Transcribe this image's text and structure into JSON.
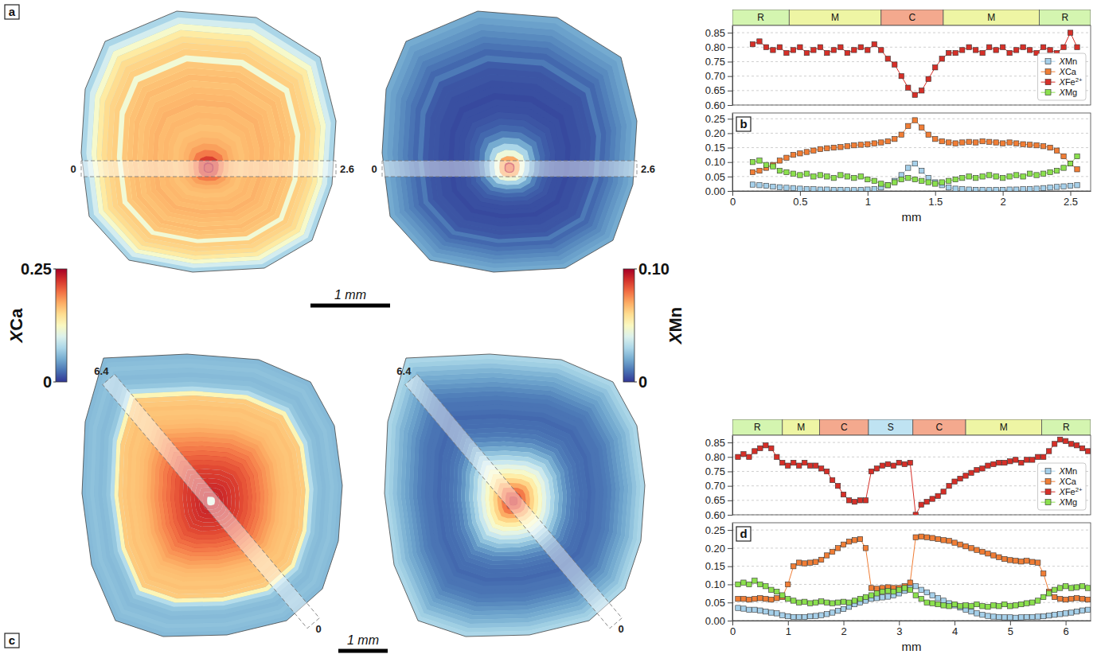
{
  "chart_data": [
    {
      "type": "colorbar",
      "label": "XCa",
      "range": [
        0,
        0.25
      ],
      "ticks": [
        0.25,
        0
      ]
    },
    {
      "type": "colorbar",
      "label": "XMn",
      "range": [
        0,
        0.1
      ],
      "ticks": [
        {
          "value": 0.1,
          "label": "0.10"
        },
        0
      ]
    },
    {
      "type": "line",
      "panel": "b",
      "maps": {
        "panel": "a",
        "series": [
          "XCa",
          "XMn"
        ],
        "traverse": [
          0,
          2.6
        ],
        "scale_bar": "1 mm"
      },
      "x": [
        0.15,
        0.2,
        0.25,
        0.3,
        0.35,
        0.4,
        0.45,
        0.5,
        0.55,
        0.6,
        0.65,
        0.7,
        0.75,
        0.8,
        0.85,
        0.9,
        0.95,
        1,
        1.05,
        1.1,
        1.15,
        1.2,
        1.25,
        1.3,
        1.35,
        1.4,
        1.45,
        1.5,
        1.55,
        1.6,
        1.65,
        1.7,
        1.75,
        1.8,
        1.85,
        1.9,
        1.95,
        2,
        2.05,
        2.1,
        2.15,
        2.2,
        2.25,
        2.3,
        2.35,
        2.4,
        2.45,
        2.5,
        2.55
      ],
      "xlim": [
        0,
        2.65
      ],
      "xticks": [
        0,
        0.5,
        1,
        1.5,
        2,
        2.5
      ],
      "x_label": "mm",
      "ylim": [
        0,
        0.27
      ],
      "yticks": [
        {
          "value": 0,
          "label": "0.00"
        },
        0.05,
        {
          "value": 0.1,
          "label": "0.10"
        },
        0.15,
        {
          "value": 0.2,
          "label": "0.20"
        },
        0.25
      ],
      "y2lim": [
        0.6,
        0.875
      ],
      "y2ticks": [
        {
          "value": 0.6,
          "label": "0.60"
        },
        0.65,
        {
          "value": 0.7,
          "label": "0.70"
        },
        0.75,
        {
          "value": 0.8,
          "label": "0.80"
        },
        0.85
      ],
      "grid": true,
      "legend": "lower right",
      "marker": "square",
      "zones": [
        {
          "label": "R",
          "start": 0,
          "end": 0.42,
          "color": "#d4f5b0"
        },
        {
          "label": "M",
          "start": 0.42,
          "end": 1.1,
          "color": "#eef5a4"
        },
        {
          "label": "C",
          "start": 1.1,
          "end": 1.56,
          "color": "#f4a98e"
        },
        {
          "label": "M",
          "start": 1.56,
          "end": 2.27,
          "color": "#eef5a4"
        },
        {
          "label": "R",
          "start": 2.27,
          "end": 2.65,
          "color": "#d4f5b0"
        }
      ],
      "series": [
        {
          "name": "XMn",
          "color": "#a6d0ea",
          "values": [
            0.022,
            0.02,
            0.018,
            0.015,
            0.013,
            0.011,
            0.01,
            0.008,
            0.007,
            0.006,
            0.005,
            0.005,
            0.004,
            0.004,
            0.003,
            0.003,
            0.004,
            0.005,
            0.007,
            0.012,
            0.02,
            0.035,
            0.055,
            0.08,
            0.095,
            0.07,
            0.045,
            0.03,
            0.02,
            0.012,
            0.008,
            0.006,
            0.005,
            0.004,
            0.004,
            0.003,
            0.004,
            0.004,
            0.005,
            0.005,
            0.006,
            0.007,
            0.008,
            0.01,
            0.012,
            0.014,
            0.016,
            0.018,
            0.02
          ]
        },
        {
          "name": "XCa",
          "color": "#f07d35",
          "values": [
            0.065,
            0.07,
            0.08,
            0.09,
            0.105,
            0.115,
            0.125,
            0.13,
            0.135,
            0.14,
            0.145,
            0.148,
            0.15,
            0.152,
            0.155,
            0.158,
            0.16,
            0.162,
            0.165,
            0.168,
            0.172,
            0.18,
            0.195,
            0.225,
            0.245,
            0.22,
            0.195,
            0.18,
            0.172,
            0.168,
            0.165,
            0.168,
            0.17,
            0.168,
            0.172,
            0.17,
            0.168,
            0.165,
            0.168,
            0.165,
            0.162,
            0.16,
            0.158,
            0.155,
            0.15,
            0.14,
            0.12,
            0.095,
            0.075
          ]
        },
        {
          "name": "XFe2+",
          "color": "#d62f28",
          "axis": "y2",
          "values": [
            0.81,
            0.82,
            0.8,
            0.79,
            0.8,
            0.78,
            0.79,
            0.8,
            0.78,
            0.79,
            0.8,
            0.78,
            0.79,
            0.8,
            0.78,
            0.79,
            0.8,
            0.79,
            0.81,
            0.79,
            0.76,
            0.74,
            0.7,
            0.66,
            0.635,
            0.65,
            0.69,
            0.73,
            0.76,
            0.78,
            0.78,
            0.79,
            0.8,
            0.79,
            0.78,
            0.8,
            0.79,
            0.8,
            0.78,
            0.79,
            0.8,
            0.79,
            0.78,
            0.8,
            0.79,
            0.78,
            0.8,
            0.85,
            0.8
          ]
        },
        {
          "name": "XMg",
          "color": "#8be04e",
          "values": [
            0.1,
            0.105,
            0.09,
            0.085,
            0.07,
            0.065,
            0.06,
            0.055,
            0.06,
            0.05,
            0.055,
            0.05,
            0.045,
            0.055,
            0.05,
            0.045,
            0.05,
            0.04,
            0.035,
            0.025,
            0.02,
            0.03,
            0.04,
            0.045,
            0.04,
            0.035,
            0.03,
            0.025,
            0.03,
            0.035,
            0.04,
            0.045,
            0.05,
            0.045,
            0.05,
            0.055,
            0.05,
            0.045,
            0.05,
            0.055,
            0.05,
            0.06,
            0.055,
            0.06,
            0.065,
            0.07,
            0.08,
            0.095,
            0.12
          ]
        }
      ]
    },
    {
      "type": "line",
      "panel": "d",
      "maps": {
        "panel": "c",
        "series": [
          "XCa",
          "XMn"
        ],
        "traverse": [
          0,
          6.4
        ],
        "scale_bar": "1 mm"
      },
      "x": [
        0.1,
        0.2,
        0.3,
        0.4,
        0.5,
        0.6,
        0.7,
        0.8,
        0.9,
        1,
        1.1,
        1.2,
        1.3,
        1.4,
        1.5,
        1.6,
        1.7,
        1.8,
        1.9,
        2,
        2.1,
        2.2,
        2.3,
        2.4,
        2.5,
        2.6,
        2.7,
        2.8,
        2.9,
        3,
        3.1,
        3.2,
        3.3,
        3.4,
        3.5,
        3.6,
        3.7,
        3.8,
        3.9,
        4,
        4.1,
        4.2,
        4.3,
        4.4,
        4.5,
        4.6,
        4.7,
        4.8,
        4.9,
        5,
        5.1,
        5.2,
        5.3,
        5.4,
        5.5,
        5.6,
        5.7,
        5.8,
        5.9,
        6,
        6.1,
        6.2,
        6.3,
        6.4
      ],
      "xlim": [
        0,
        6.45
      ],
      "xticks": [
        0,
        1,
        2,
        3,
        4,
        5,
        6
      ],
      "x_label": "mm",
      "ylim": [
        0,
        0.27
      ],
      "yticks": [
        {
          "value": 0,
          "label": "0.00"
        },
        0.05,
        {
          "value": 0.1,
          "label": "0.10"
        },
        0.15,
        {
          "value": 0.2,
          "label": "0.20"
        },
        0.25
      ],
      "y2lim": [
        0.6,
        0.875
      ],
      "y2ticks": [
        {
          "value": 0.6,
          "label": "0.60"
        },
        0.65,
        {
          "value": 0.7,
          "label": "0.70"
        },
        0.75,
        {
          "value": 0.8,
          "label": "0.80"
        },
        0.85
      ],
      "grid": true,
      "legend": "lower right",
      "marker": "square",
      "zones": [
        {
          "label": "R",
          "start": 0,
          "end": 0.9,
          "color": "#d4f5b0"
        },
        {
          "label": "M",
          "start": 0.9,
          "end": 1.57,
          "color": "#eef5a4"
        },
        {
          "label": "C",
          "start": 1.57,
          "end": 2.45,
          "color": "#f4a98e"
        },
        {
          "label": "S",
          "start": 2.45,
          "end": 3.25,
          "color": "#bfe3f2"
        },
        {
          "label": "C",
          "start": 3.25,
          "end": 4.2,
          "color": "#f4a98e"
        },
        {
          "label": "M",
          "start": 4.2,
          "end": 5.57,
          "color": "#eef5a4"
        },
        {
          "label": "R",
          "start": 5.57,
          "end": 6.45,
          "color": "#d4f5b0"
        }
      ],
      "series": [
        {
          "name": "XMn",
          "color": "#a6d0ea",
          "values": [
            0.035,
            0.033,
            0.03,
            0.03,
            0.028,
            0.025,
            0.022,
            0.02,
            0.015,
            0.012,
            0.01,
            0.01,
            0.01,
            0.012,
            0.013,
            0.015,
            0.018,
            0.022,
            0.027,
            0.032,
            0.038,
            0.045,
            0.05,
            0.055,
            0.06,
            0.062,
            0.064,
            0.066,
            0.07,
            0.075,
            0.082,
            0.09,
            0.095,
            0.085,
            0.078,
            0.07,
            0.062,
            0.055,
            0.048,
            0.042,
            0.036,
            0.03,
            0.025,
            0.02,
            0.016,
            0.013,
            0.011,
            0.01,
            0.009,
            0.009,
            0.008,
            0.009,
            0.01,
            0.01,
            0.011,
            0.012,
            0.014,
            0.016,
            0.018,
            0.02,
            0.022,
            0.025,
            0.028,
            0.03
          ]
        },
        {
          "name": "XCa",
          "color": "#f07d35",
          "values": [
            0.06,
            0.06,
            0.058,
            0.06,
            0.062,
            0.06,
            0.058,
            0.062,
            0.065,
            0.1,
            0.15,
            0.16,
            0.158,
            0.16,
            0.162,
            0.168,
            0.18,
            0.19,
            0.2,
            0.21,
            0.218,
            0.222,
            0.225,
            0.2,
            0.09,
            0.088,
            0.09,
            0.092,
            0.09,
            0.09,
            0.095,
            0.105,
            0.23,
            0.232,
            0.23,
            0.228,
            0.225,
            0.222,
            0.22,
            0.215,
            0.21,
            0.205,
            0.2,
            0.195,
            0.19,
            0.185,
            0.18,
            0.175,
            0.17,
            0.167,
            0.165,
            0.163,
            0.165,
            0.162,
            0.16,
            0.13,
            0.08,
            0.065,
            0.06,
            0.058,
            0.06,
            0.062,
            0.06,
            0.058
          ]
        },
        {
          "name": "XFe2+",
          "color": "#d62f28",
          "axis": "y2",
          "values": [
            0.8,
            0.81,
            0.8,
            0.82,
            0.83,
            0.84,
            0.83,
            0.8,
            0.78,
            0.77,
            0.78,
            0.77,
            0.78,
            0.77,
            0.77,
            0.76,
            0.75,
            0.72,
            0.7,
            0.67,
            0.65,
            0.645,
            0.65,
            0.65,
            0.75,
            0.76,
            0.77,
            0.775,
            0.77,
            0.78,
            0.775,
            0.78,
            0.6,
            0.635,
            0.645,
            0.655,
            0.665,
            0.68,
            0.7,
            0.715,
            0.725,
            0.735,
            0.745,
            0.755,
            0.76,
            0.77,
            0.775,
            0.78,
            0.78,
            0.785,
            0.79,
            0.78,
            0.79,
            0.79,
            0.8,
            0.8,
            0.82,
            0.845,
            0.86,
            0.855,
            0.845,
            0.84,
            0.83,
            0.82
          ]
        },
        {
          "name": "XMg",
          "color": "#8be04e",
          "values": [
            0.1,
            0.105,
            0.1,
            0.11,
            0.1,
            0.095,
            0.085,
            0.08,
            0.07,
            0.06,
            0.055,
            0.05,
            0.052,
            0.048,
            0.05,
            0.053,
            0.05,
            0.048,
            0.05,
            0.052,
            0.05,
            0.055,
            0.06,
            0.065,
            0.07,
            0.075,
            0.08,
            0.082,
            0.08,
            0.085,
            0.09,
            0.085,
            0.07,
            0.06,
            0.05,
            0.048,
            0.045,
            0.042,
            0.04,
            0.045,
            0.04,
            0.042,
            0.04,
            0.045,
            0.04,
            0.038,
            0.042,
            0.04,
            0.045,
            0.04,
            0.042,
            0.045,
            0.048,
            0.05,
            0.055,
            0.065,
            0.075,
            0.085,
            0.09,
            0.095,
            0.09,
            0.092,
            0.095,
            0.09
          ]
        }
      ]
    }
  ]
}
